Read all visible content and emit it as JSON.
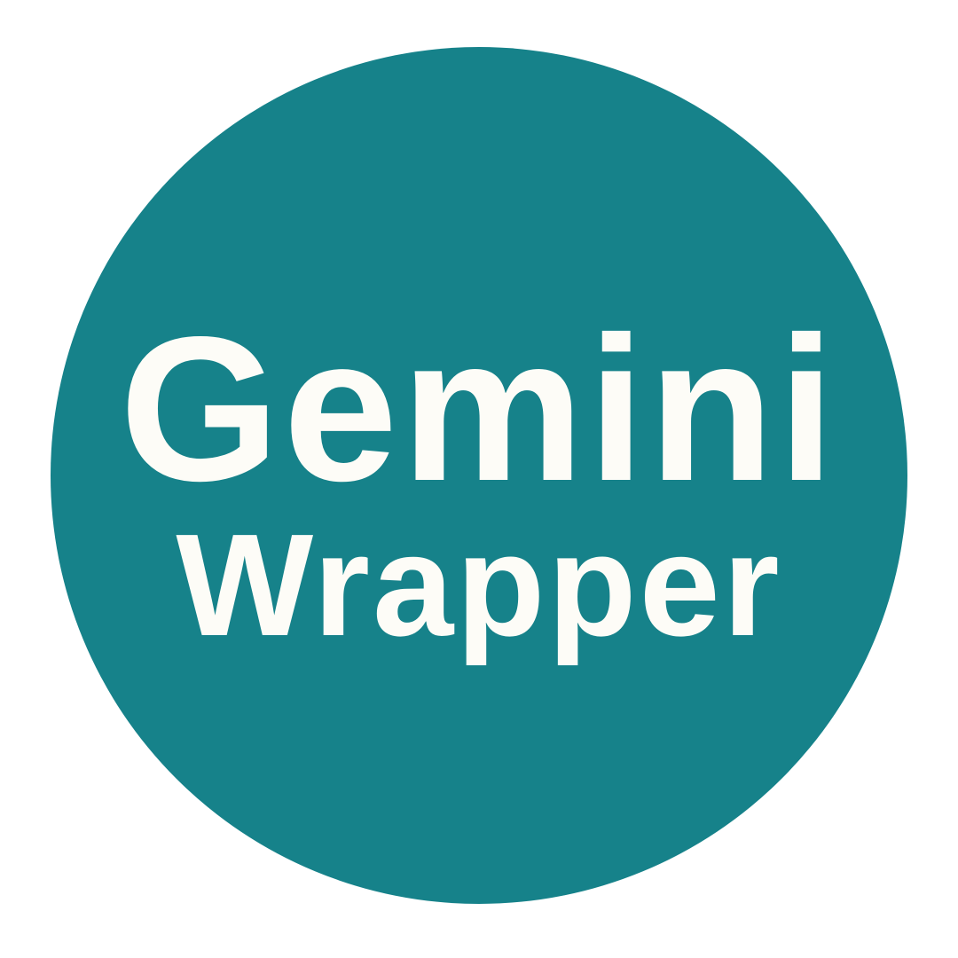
{
  "logo": {
    "line1": "Gemini",
    "line2": "Wrapper",
    "background_color": "#ffffff",
    "circle_color": "#16828a",
    "text_color": "#fdfcf7",
    "shape": "circle"
  }
}
